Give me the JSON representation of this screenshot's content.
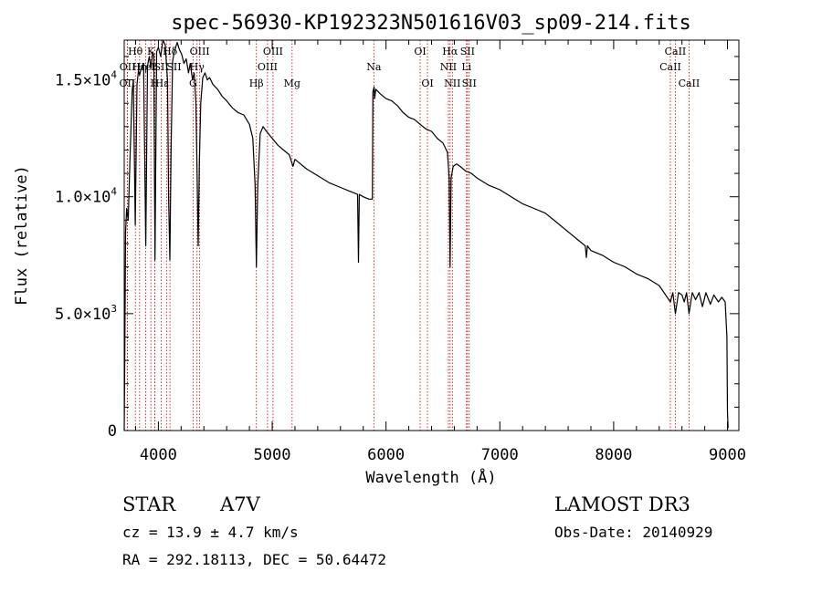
{
  "chart_data": {
    "type": "line",
    "title": "spec-56930-KP192323N501616V03_sp09-214.fits",
    "xlabel": "Wavelength (Å)",
    "ylabel": "Flux (relative)",
    "xlim": [
      3700,
      9100
    ],
    "ylim": [
      0,
      16700
    ],
    "x_ticks": [
      {
        "value": 4000,
        "label": "4000"
      },
      {
        "value": 5000,
        "label": "5000"
      },
      {
        "value": 6000,
        "label": "6000"
      },
      {
        "value": 7000,
        "label": "7000"
      },
      {
        "value": 8000,
        "label": "8000"
      },
      {
        "value": 9000,
        "label": "9000"
      }
    ],
    "y_ticks": [
      {
        "value": 0,
        "mantissa": "0",
        "exponent": ""
      },
      {
        "value": 5000,
        "mantissa": "5.0×10",
        "exponent": "3"
      },
      {
        "value": 10000,
        "mantissa": "1.0×10",
        "exponent": "4"
      },
      {
        "value": 15000,
        "mantissa": "1.5×10",
        "exponent": "4"
      }
    ],
    "series": [
      {
        "name": "spectrum",
        "color": "#000000",
        "points": [
          [
            3700,
            0
          ],
          [
            3705,
            3000
          ],
          [
            3712,
            8500
          ],
          [
            3722,
            9500
          ],
          [
            3735,
            9000
          ],
          [
            3750,
            11500
          ],
          [
            3770,
            14500
          ],
          [
            3780,
            15000
          ],
          [
            3797,
            8800
          ],
          [
            3812,
            14800
          ],
          [
            3825,
            15400
          ],
          [
            3835,
            15200
          ],
          [
            3850,
            15500
          ],
          [
            3870,
            15700
          ],
          [
            3889,
            7900
          ],
          [
            3905,
            15600
          ],
          [
            3920,
            16000
          ],
          [
            3935,
            15500
          ],
          [
            3950,
            16200
          ],
          [
            3960,
            16000
          ],
          [
            3970,
            7300
          ],
          [
            3985,
            16200
          ],
          [
            4000,
            16400
          ],
          [
            4020,
            16000
          ],
          [
            4040,
            16700
          ],
          [
            4060,
            16500
          ],
          [
            4080,
            15000
          ],
          [
            4090,
            10000
          ],
          [
            4101,
            7300
          ],
          [
            4112,
            12000
          ],
          [
            4125,
            15800
          ],
          [
            4140,
            16200
          ],
          [
            4165,
            16600
          ],
          [
            4185,
            16300
          ],
          [
            4205,
            16100
          ],
          [
            4225,
            15700
          ],
          [
            4245,
            15900
          ],
          [
            4265,
            15300
          ],
          [
            4280,
            15700
          ],
          [
            4300,
            15000
          ],
          [
            4315,
            15300
          ],
          [
            4330,
            14000
          ],
          [
            4340,
            11000
          ],
          [
            4350,
            7900
          ],
          [
            4360,
            11500
          ],
          [
            4372,
            14000
          ],
          [
            4390,
            15100
          ],
          [
            4410,
            15300
          ],
          [
            4430,
            15000
          ],
          [
            4450,
            15100
          ],
          [
            4480,
            14800
          ],
          [
            4520,
            14600
          ],
          [
            4560,
            14300
          ],
          [
            4600,
            14100
          ],
          [
            4650,
            13800
          ],
          [
            4700,
            13600
          ],
          [
            4750,
            13500
          ],
          [
            4800,
            13100
          ],
          [
            4830,
            12500
          ],
          [
            4850,
            10500
          ],
          [
            4861,
            7000
          ],
          [
            4873,
            10500
          ],
          [
            4895,
            12700
          ],
          [
            4920,
            13000
          ],
          [
            4950,
            12800
          ],
          [
            5000,
            12500
          ],
          [
            5050,
            12200
          ],
          [
            5100,
            12000
          ],
          [
            5150,
            11800
          ],
          [
            5183,
            11300
          ],
          [
            5200,
            11600
          ],
          [
            5250,
            11400
          ],
          [
            5300,
            11200
          ],
          [
            5400,
            10900
          ],
          [
            5500,
            10600
          ],
          [
            5600,
            10400
          ],
          [
            5700,
            10200
          ],
          [
            5750,
            10100
          ],
          [
            5758,
            7200
          ],
          [
            5765,
            10100
          ],
          [
            5800,
            10000
          ],
          [
            5850,
            9900
          ],
          [
            5880,
            9900
          ],
          [
            5885,
            14500
          ],
          [
            5895,
            14700
          ],
          [
            5900,
            14200
          ],
          [
            5910,
            14600
          ],
          [
            5950,
            14400
          ],
          [
            6000,
            14200
          ],
          [
            6050,
            14100
          ],
          [
            6100,
            13900
          ],
          [
            6150,
            13600
          ],
          [
            6200,
            13400
          ],
          [
            6250,
            13300
          ],
          [
            6300,
            13100
          ],
          [
            6350,
            12900
          ],
          [
            6400,
            12800
          ],
          [
            6450,
            12500
          ],
          [
            6500,
            12300
          ],
          [
            6540,
            11900
          ],
          [
            6555,
            10800
          ],
          [
            6563,
            7000
          ],
          [
            6572,
            10800
          ],
          [
            6590,
            11300
          ],
          [
            6620,
            11400
          ],
          [
            6650,
            11300
          ],
          [
            6700,
            11100
          ],
          [
            6750,
            11000
          ],
          [
            6800,
            10800
          ],
          [
            6900,
            10500
          ],
          [
            7000,
            10300
          ],
          [
            7100,
            10000
          ],
          [
            7200,
            9700
          ],
          [
            7300,
            9500
          ],
          [
            7400,
            9300
          ],
          [
            7500,
            8900
          ],
          [
            7600,
            8500
          ],
          [
            7700,
            8100
          ],
          [
            7750,
            7900
          ],
          [
            7760,
            7400
          ],
          [
            7770,
            7900
          ],
          [
            7800,
            7700
          ],
          [
            7900,
            7500
          ],
          [
            8000,
            7200
          ],
          [
            8100,
            7000
          ],
          [
            8200,
            6700
          ],
          [
            8300,
            6500
          ],
          [
            8400,
            6200
          ],
          [
            8498,
            5500
          ],
          [
            8520,
            5900
          ],
          [
            8542,
            5000
          ],
          [
            8570,
            5900
          ],
          [
            8600,
            5800
          ],
          [
            8620,
            5500
          ],
          [
            8640,
            5900
          ],
          [
            8662,
            5000
          ],
          [
            8690,
            5900
          ],
          [
            8720,
            5600
          ],
          [
            8750,
            5900
          ],
          [
            8780,
            5300
          ],
          [
            8810,
            5900
          ],
          [
            8850,
            5400
          ],
          [
            8880,
            5800
          ],
          [
            8920,
            5500
          ],
          [
            8950,
            5700
          ],
          [
            8980,
            5500
          ],
          [
            8995,
            4000
          ],
          [
            9000,
            800
          ],
          [
            9005,
            100
          ]
        ]
      }
    ],
    "spectral_lines": [
      {
        "wavelength": 3727,
        "label": "OII",
        "row": 3,
        "align": "middle"
      },
      {
        "wavelength": 3729,
        "label": "OII",
        "row": 2,
        "align": "middle"
      },
      {
        "wavelength": 3798,
        "label": "Hθ",
        "row": 1,
        "align": "middle"
      },
      {
        "wavelength": 3835,
        "label": "Hη",
        "row": 2,
        "align": "middle"
      },
      {
        "wavelength": 3889,
        "label": "HeI",
        "row": 2,
        "align": "middle"
      },
      {
        "wavelength": 3934,
        "label": "K",
        "row": 1,
        "align": "middle"
      },
      {
        "wavelength": 3969,
        "label": "H",
        "row": 3,
        "align": "middle"
      },
      {
        "wavelength": 3970,
        "label": "Hε",
        "row": 3,
        "align": "start"
      },
      {
        "wavelength": 4026,
        "label": "SII",
        "row": 2,
        "align": "middle"
      },
      {
        "wavelength": 4072,
        "label": "SII",
        "row": 2,
        "align": "start"
      },
      {
        "wavelength": 4102,
        "label": "Hδ",
        "row": 1,
        "align": "middle"
      },
      {
        "wavelength": 4305,
        "label": "G",
        "row": 3,
        "align": "middle"
      },
      {
        "wavelength": 4340,
        "label": "Hγ",
        "row": 2,
        "align": "middle"
      },
      {
        "wavelength": 4363,
        "label": "OIII",
        "row": 1,
        "align": "middle"
      },
      {
        "wavelength": 4861,
        "label": "Hβ",
        "row": 3,
        "align": "middle"
      },
      {
        "wavelength": 4959,
        "label": "OIII",
        "row": 2,
        "align": "middle"
      },
      {
        "wavelength": 5007,
        "label": "OIII",
        "row": 1,
        "align": "middle"
      },
      {
        "wavelength": 5175,
        "label": "Mg",
        "row": 3,
        "align": "middle"
      },
      {
        "wavelength": 5893,
        "label": "Na",
        "row": 2,
        "align": "middle"
      },
      {
        "wavelength": 6300,
        "label": "OI",
        "row": 1,
        "align": "middle"
      },
      {
        "wavelength": 6364,
        "label": "OI",
        "row": 3,
        "align": "middle"
      },
      {
        "wavelength": 6548,
        "label": "NII",
        "row": 2,
        "align": "middle"
      },
      {
        "wavelength": 6563,
        "label": "Hα",
        "row": 1,
        "align": "middle"
      },
      {
        "wavelength": 6583,
        "label": "NII",
        "row": 3,
        "align": "middle"
      },
      {
        "wavelength": 6707,
        "label": "Li",
        "row": 2,
        "align": "middle"
      },
      {
        "wavelength": 6716,
        "label": "SII",
        "row": 1,
        "align": "middle"
      },
      {
        "wavelength": 6731,
        "label": "SII",
        "row": 3,
        "align": "middle"
      },
      {
        "wavelength": 8498,
        "label": "CaII",
        "row": 2,
        "align": "middle"
      },
      {
        "wavelength": 8542,
        "label": "CaII",
        "row": 1,
        "align": "middle"
      },
      {
        "wavelength": 8662,
        "label": "CaII",
        "row": 3,
        "align": "middle"
      }
    ],
    "line_color": "#cc0000"
  },
  "info": {
    "class_label": "STAR",
    "subclass": "A7V",
    "survey": "LAMOST DR3",
    "cz": "cz = 13.9 ± 4.7 km/s",
    "obs_date": "Obs-Date: 20140929",
    "coords": "RA = 292.18113, DEC =  50.64472"
  }
}
